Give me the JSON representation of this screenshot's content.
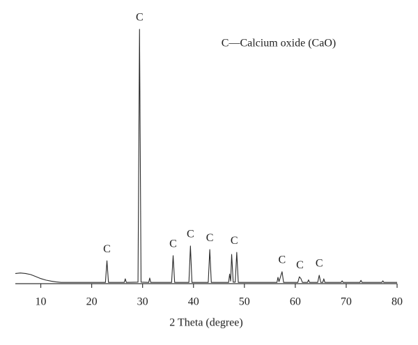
{
  "chart_data": {
    "type": "line",
    "x_label": "2 Theta (degree)",
    "note": "C—Calcium oxide (CaO)",
    "xlim": [
      5,
      80
    ],
    "xticks": [
      10,
      20,
      30,
      40,
      50,
      60,
      70,
      80
    ],
    "ylim": [
      0,
      100
    ],
    "color": "#2a2a2a",
    "x": [
      5,
      6,
      7,
      8,
      9,
      10,
      11,
      12,
      13,
      14,
      16,
      20,
      22.7,
      23.0,
      23.3,
      26.4,
      26.6,
      26.8,
      29.1,
      29.4,
      29.7,
      31.2,
      31.4,
      31.6,
      35.7,
      36.0,
      36.3,
      39.1,
      39.4,
      39.7,
      42.9,
      43.2,
      43.5,
      46.9,
      47.1,
      47.3,
      47.5,
      47.8,
      48.2,
      48.5,
      48.8,
      56.4,
      56.6,
      56.8,
      57.4,
      57.7,
      60.5,
      60.8,
      61.1,
      61.4,
      62.4,
      62.6,
      62.8,
      64.4,
      64.7,
      65.0,
      65.4,
      65.6,
      65.8,
      69.0,
      69.2,
      69.4,
      72.7,
      72.9,
      73.1,
      77.0,
      77.2,
      77.4,
      80
    ],
    "values": [
      4.0,
      4.2,
      4.0,
      3.6,
      2.8,
      2.0,
      1.4,
      1.0,
      0.7,
      0.5,
      0.5,
      0.5,
      0.5,
      9.0,
      0.5,
      0.5,
      1.9,
      0.5,
      0.6,
      100,
      0.6,
      0.5,
      2.2,
      0.5,
      0.5,
      11,
      0.5,
      0.5,
      14.8,
      0.5,
      0.5,
      13.4,
      0.5,
      0.5,
      3.8,
      1.0,
      11.5,
      0.6,
      0.6,
      12.3,
      0.5,
      0.5,
      2.5,
      0.8,
      4.7,
      0.5,
      0.5,
      2.7,
      2.0,
      0.5,
      0.5,
      1.5,
      0.5,
      0.5,
      3.3,
      0.5,
      0.5,
      1.9,
      0.5,
      0.5,
      1.1,
      0.5,
      0.5,
      1.3,
      0.5,
      0.5,
      1.1,
      0.5,
      0.5
    ],
    "peak_labels": [
      {
        "text": "C",
        "x": 23.0
      },
      {
        "text": "C",
        "x": 29.4
      },
      {
        "text": "C",
        "x": 36.0
      },
      {
        "text": "C",
        "x": 39.4
      },
      {
        "text": "C",
        "x": 43.2
      },
      {
        "text": "C",
        "x": 48.0
      },
      {
        "text": "C",
        "x": 57.4
      },
      {
        "text": "C",
        "x": 60.9
      },
      {
        "text": "C",
        "x": 64.7
      }
    ]
  }
}
